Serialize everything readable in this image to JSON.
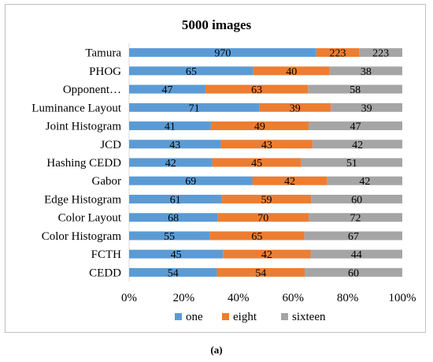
{
  "chart_data": {
    "type": "bar",
    "orientation": "horizontal",
    "stacked": "percent",
    "title": "5000 images",
    "categories": [
      "Tamura",
      "PHOG",
      "Opponent…",
      "Luminance Layout",
      "Joint Histogram",
      "JCD",
      "Hashing CEDD",
      "Gabor",
      "Edge Histogram",
      "Color Layout",
      "Color Histogram",
      "FCTH",
      "CEDD"
    ],
    "series": [
      {
        "name": "one",
        "color": "#5b9bd5",
        "values": [
          970,
          65,
          47,
          71,
          41,
          43,
          42,
          69,
          61,
          68,
          55,
          45,
          54
        ]
      },
      {
        "name": "eight",
        "color": "#ed7d31",
        "values": [
          223,
          40,
          63,
          39,
          49,
          43,
          45,
          42,
          59,
          70,
          65,
          42,
          54
        ]
      },
      {
        "name": "sixteen",
        "color": "#a5a5a5",
        "values": [
          223,
          38,
          58,
          39,
          47,
          42,
          51,
          42,
          60,
          72,
          67,
          44,
          60
        ]
      }
    ],
    "xticks": [
      "0%",
      "20%",
      "40%",
      "60%",
      "80%",
      "100%"
    ],
    "xlim": [
      0,
      100
    ],
    "grid": false,
    "legend_position": "bottom"
  },
  "caption": "(a)"
}
